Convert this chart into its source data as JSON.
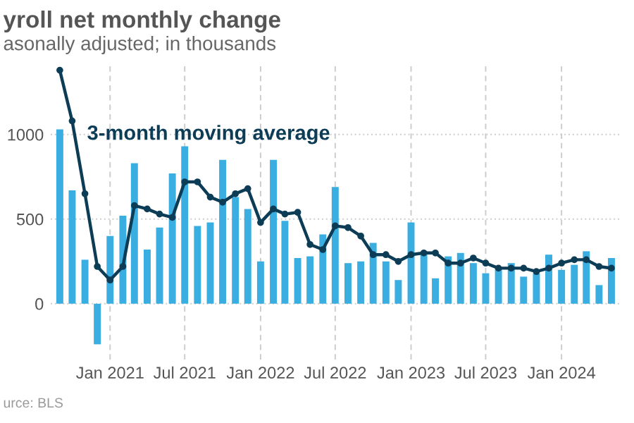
{
  "chart_data": {
    "type": "bar",
    "title": "yroll net monthly change",
    "subtitle": "asonally adjusted; in thousands",
    "annotations": [
      "urce: BLS"
    ],
    "x": [
      "2020-09",
      "2020-10",
      "2020-11",
      "2020-12",
      "2021-01",
      "2021-02",
      "2021-03",
      "2021-04",
      "2021-05",
      "2021-06",
      "2021-07",
      "2021-08",
      "2021-09",
      "2021-10",
      "2021-11",
      "2021-12",
      "2022-01",
      "2022-02",
      "2022-03",
      "2022-04",
      "2022-05",
      "2022-06",
      "2022-07",
      "2022-08",
      "2022-09",
      "2022-10",
      "2022-11",
      "2022-12",
      "2023-01",
      "2023-02",
      "2023-03",
      "2023-04",
      "2023-05",
      "2023-06",
      "2023-07",
      "2023-08",
      "2023-09",
      "2023-10",
      "2023-11",
      "2023-12",
      "2024-01",
      "2024-02",
      "2024-03",
      "2024-04",
      "2024-05"
    ],
    "series": [
      {
        "color": "#3aaee0",
        "values": [
          1030,
          670,
          260,
          -240,
          400,
          520,
          830,
          320,
          450,
          770,
          930,
          460,
          480,
          850,
          630,
          560,
          250,
          850,
          490,
          270,
          280,
          410,
          690,
          240,
          250,
          360,
          250,
          140,
          480,
          290,
          150,
          280,
          300,
          240,
          180,
          210,
          240,
          160,
          180,
          290,
          200,
          230,
          310,
          110,
          270
        ]
      },
      {
        "type": "line",
        "name": "3-month moving average",
        "color": "#0d3d56",
        "marker": "circle",
        "values": [
          1380,
          1080,
          650,
          220,
          140,
          220,
          580,
          560,
          530,
          510,
          720,
          720,
          630,
          600,
          650,
          680,
          480,
          560,
          530,
          540,
          350,
          320,
          460,
          450,
          400,
          290,
          290,
          250,
          290,
          300,
          300,
          240,
          240,
          270,
          240,
          210,
          210,
          210,
          190,
          210,
          240,
          260,
          260,
          220,
          210
        ]
      }
    ],
    "xlim": [
      "2020-08-10",
      "2024-05-25"
    ],
    "xticks": [
      {
        "value": "2021-01",
        "label": "Jan 2021"
      },
      {
        "value": "2021-07",
        "label": "Jul 2021"
      },
      {
        "value": "2022-01",
        "label": "Jan 2022"
      },
      {
        "value": "2022-07",
        "label": "Jul 2022"
      },
      {
        "value": "2023-01",
        "label": "Jan 2023"
      },
      {
        "value": "2023-07",
        "label": "Jul 2023"
      },
      {
        "value": "2024-01",
        "label": "Jan 2024"
      }
    ],
    "ylim": [
      -330,
      1420
    ],
    "yticks": [
      0,
      500,
      1000
    ],
    "grid": true
  }
}
